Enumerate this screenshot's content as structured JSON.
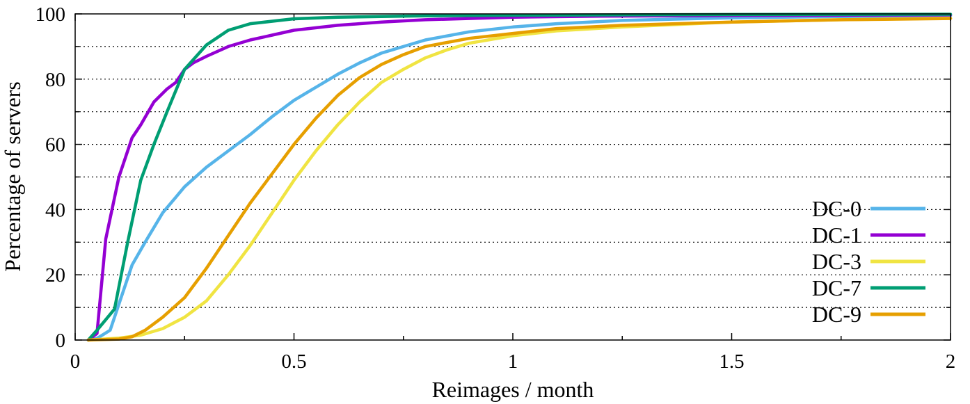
{
  "chart_data": {
    "type": "line",
    "title": "",
    "xlabel": "Reimages / month",
    "ylabel": "Percentage of servers",
    "xlim": [
      0,
      2
    ],
    "ylim": [
      0,
      100
    ],
    "xticks": [
      0,
      0.5,
      1,
      1.5,
      2
    ],
    "xtick_labels": [
      "0",
      "0.5",
      "1",
      "1.5",
      "2"
    ],
    "yticks": [
      0,
      20,
      40,
      60,
      80,
      100
    ],
    "ytick_labels": [
      "0",
      "20",
      "40",
      "60",
      "80",
      "100"
    ],
    "grid": true,
    "legend_position": "right",
    "series": [
      {
        "name": "DC-0",
        "color": "#56b4e9",
        "x": [
          0.03,
          0.05,
          0.08,
          0.13,
          0.16,
          0.2,
          0.25,
          0.3,
          0.35,
          0.4,
          0.45,
          0.5,
          0.55,
          0.6,
          0.65,
          0.7,
          0.75,
          0.8,
          0.9,
          1.0,
          1.1,
          1.25,
          1.5,
          1.75,
          2.0
        ],
        "y": [
          0,
          0.5,
          3,
          23,
          30,
          39,
          47,
          53,
          58,
          63,
          68.5,
          73.5,
          77.5,
          81.5,
          85,
          88,
          90,
          92,
          94.5,
          96,
          97,
          98,
          98.8,
          99.2,
          99.5
        ]
      },
      {
        "name": "DC-1",
        "color": "#9400d3",
        "x": [
          0.03,
          0.05,
          0.07,
          0.1,
          0.13,
          0.15,
          0.18,
          0.21,
          0.23,
          0.25,
          0.27,
          0.3,
          0.35,
          0.4,
          0.45,
          0.5,
          0.6,
          0.7,
          0.8,
          1.0,
          1.2,
          1.5,
          2.0
        ],
        "y": [
          0,
          2,
          31,
          50,
          62,
          66,
          73,
          77,
          79,
          83,
          85,
          87,
          90,
          92,
          93.5,
          95,
          96.5,
          97.5,
          98.2,
          99,
          99.3,
          99.5,
          99.7
        ]
      },
      {
        "name": "DC-3",
        "color": "#f0e442",
        "x": [
          0.03,
          0.1,
          0.15,
          0.2,
          0.25,
          0.3,
          0.35,
          0.4,
          0.45,
          0.5,
          0.55,
          0.6,
          0.65,
          0.7,
          0.75,
          0.8,
          0.85,
          0.9,
          1.0,
          1.1,
          1.25,
          1.5,
          1.75,
          2.0
        ],
        "y": [
          0,
          0.6,
          1.5,
          3.5,
          7,
          12,
          20,
          29,
          39,
          49,
          58,
          66,
          73,
          79,
          83,
          86.5,
          89,
          91,
          93.3,
          94.8,
          96,
          97.5,
          98.2,
          98.7
        ]
      },
      {
        "name": "DC-7",
        "color": "#009e73",
        "x": [
          0.03,
          0.05,
          0.09,
          0.12,
          0.15,
          0.18,
          0.21,
          0.25,
          0.3,
          0.35,
          0.4,
          0.5,
          0.6,
          0.8,
          1.0,
          1.5,
          2.0
        ],
        "y": [
          0,
          3,
          9.5,
          30,
          49,
          60,
          70,
          83,
          90.5,
          95,
          97,
          98.5,
          99,
          99.4,
          99.6,
          99.8,
          99.9
        ]
      },
      {
        "name": "DC-9",
        "color": "#e69f00",
        "x": [
          0.03,
          0.1,
          0.13,
          0.16,
          0.2,
          0.25,
          0.3,
          0.35,
          0.4,
          0.45,
          0.5,
          0.55,
          0.6,
          0.65,
          0.7,
          0.75,
          0.8,
          0.9,
          1.0,
          1.1,
          1.25,
          1.5,
          1.75,
          2.0
        ],
        "y": [
          0,
          0.3,
          1,
          3,
          7,
          13,
          22,
          32,
          42,
          51,
          60,
          68,
          75,
          80.5,
          84.5,
          87.5,
          90,
          92.5,
          94,
          95.5,
          96.5,
          97.5,
          98.2,
          98.6
        ]
      }
    ]
  }
}
